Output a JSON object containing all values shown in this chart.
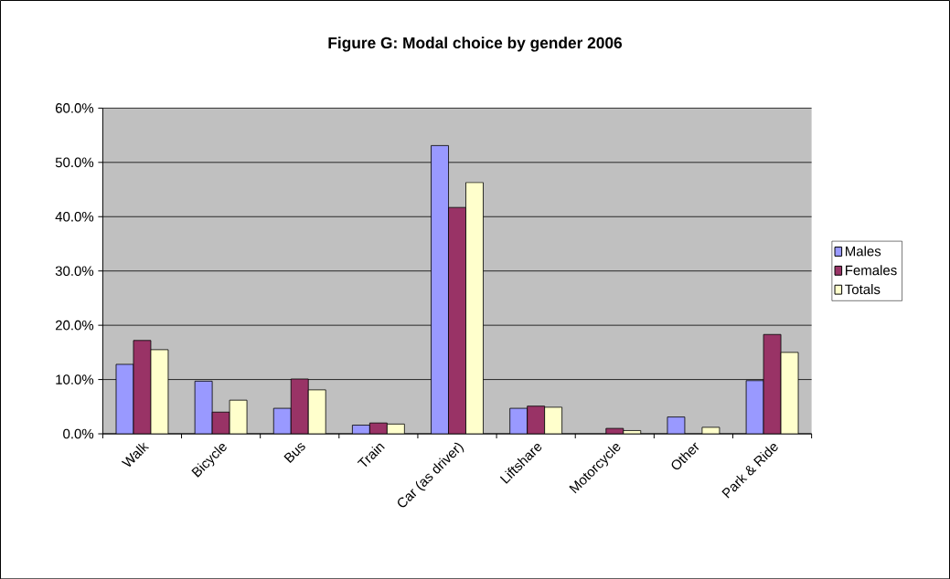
{
  "chart_data": {
    "type": "bar",
    "title": "Figure G: Modal choice by gender 2006",
    "categories": [
      "Walk",
      "Bicycle",
      "Bus",
      "Train",
      "Car (as driver)",
      "Liftshare",
      "Motorcycle",
      "Other",
      "Park & Ride"
    ],
    "series": [
      {
        "name": "Males",
        "color": "#9999ff",
        "values": [
          12.8,
          9.7,
          4.7,
          1.6,
          53.1,
          4.7,
          null,
          3.1,
          9.8
        ]
      },
      {
        "name": "Females",
        "color": "#993366",
        "values": [
          17.2,
          4.0,
          10.1,
          2.0,
          41.7,
          5.1,
          1.0,
          null,
          18.3
        ]
      },
      {
        "name": "Totals",
        "color": "#ffffcc",
        "values": [
          15.5,
          6.2,
          8.1,
          1.8,
          46.3,
          4.9,
          0.6,
          1.2,
          15.0
        ]
      }
    ],
    "ylim": [
      0,
      60
    ],
    "yticks": [
      {
        "value": 0,
        "label": "0.0%"
      },
      {
        "value": 10,
        "label": "10.0%"
      },
      {
        "value": 20,
        "label": "20.0%"
      },
      {
        "value": 30,
        "label": "30.0%"
      },
      {
        "value": 40,
        "label": "40.0%"
      },
      {
        "value": 50,
        "label": "50.0%"
      },
      {
        "value": 60,
        "label": "60.0%"
      }
    ],
    "grid": "y",
    "legend": "right"
  }
}
